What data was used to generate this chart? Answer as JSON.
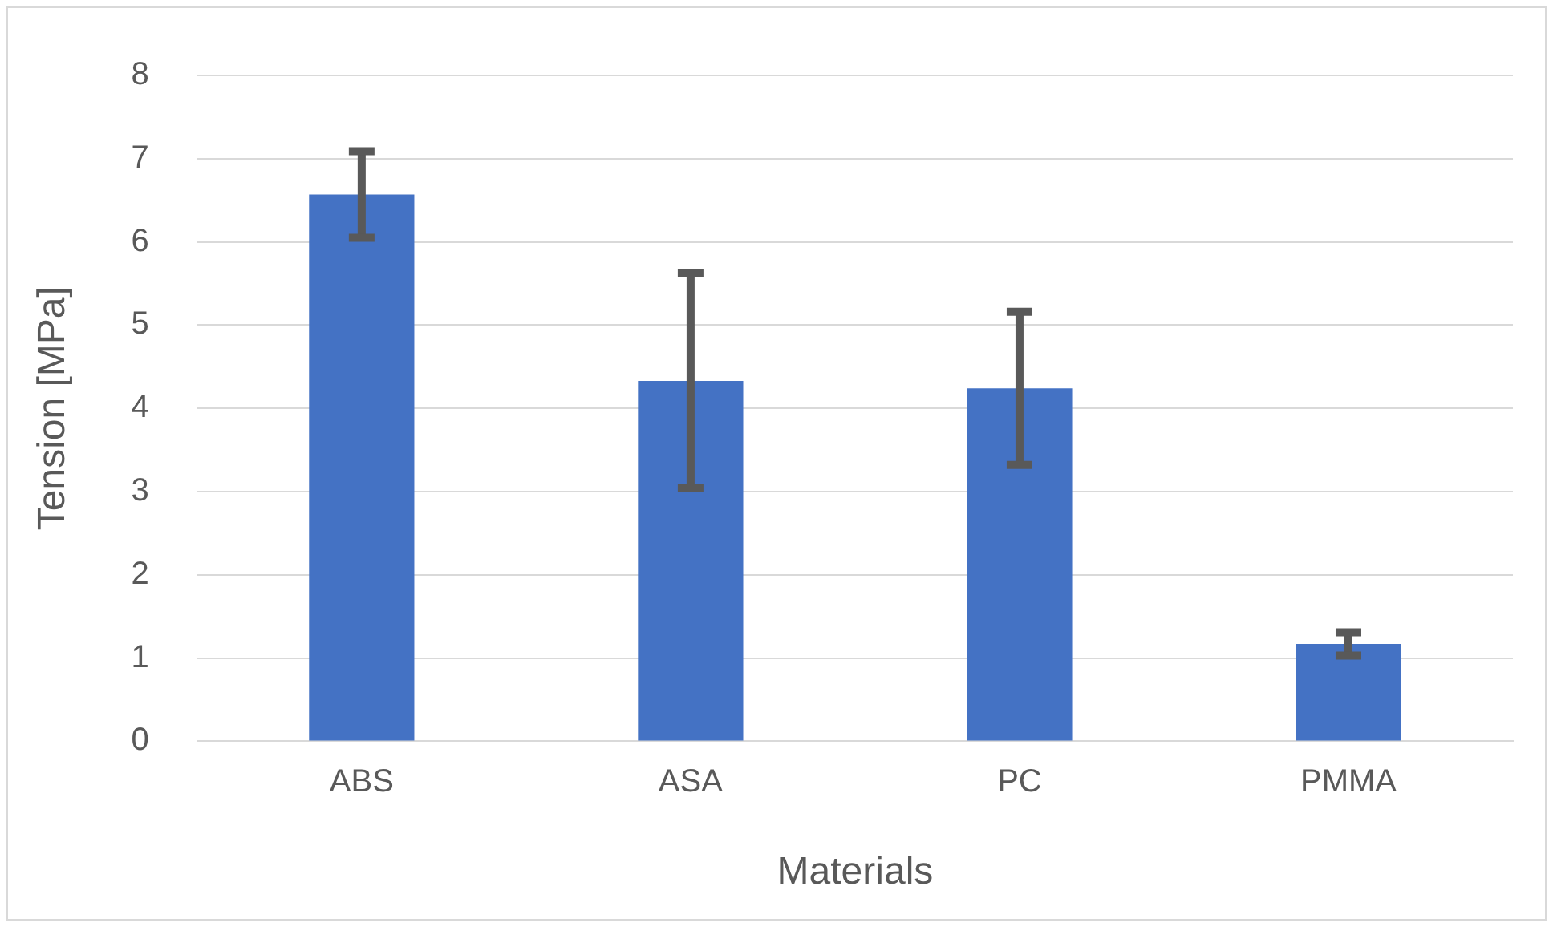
{
  "chart_data": {
    "type": "bar",
    "xlabel": "Materials",
    "ylabel": "Tension [MPa]",
    "categories": [
      "ABS",
      "ASA",
      "PC",
      "PMMA"
    ],
    "values": [
      6.57,
      4.33,
      4.24,
      1.17
    ],
    "errors": [
      0.52,
      1.29,
      0.92,
      0.14
    ],
    "color": "#4472c4",
    "ylim": [
      0,
      8
    ],
    "yticks": [
      0,
      1,
      2,
      3,
      4,
      5,
      6,
      7,
      8
    ],
    "grid": "y",
    "legend": false
  }
}
